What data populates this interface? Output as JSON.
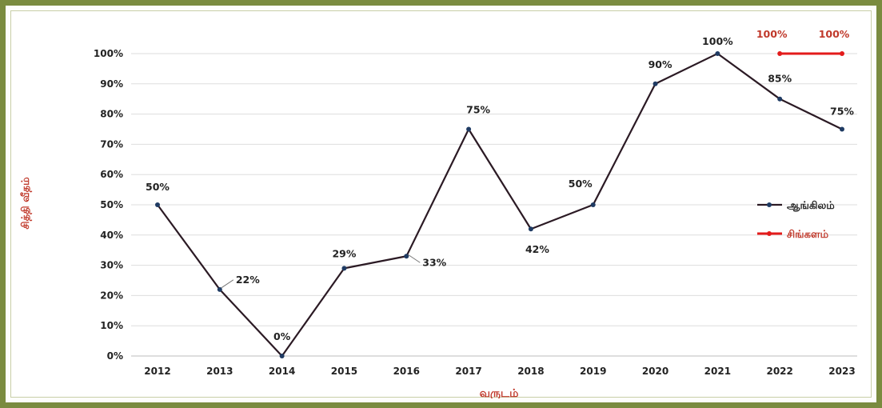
{
  "chart_data": {
    "type": "line",
    "x": [
      "2012",
      "2013",
      "2014",
      "2015",
      "2016",
      "2017",
      "2018",
      "2019",
      "2020",
      "2021",
      "2022",
      "2023"
    ],
    "series": [
      {
        "name": "ஆங்கிலம்",
        "color": "#2b1a24",
        "values": [
          50,
          22,
          0,
          29,
          33,
          75,
          42,
          50,
          90,
          100,
          85,
          75
        ],
        "labels": [
          "50%",
          "22%",
          "0%",
          "29%",
          "33%",
          "75%",
          "42%",
          "50%",
          "90%",
          "100%",
          "85%",
          "75%"
        ]
      },
      {
        "name": "சிங்களம்",
        "color": "#e31b1b",
        "values": [
          null,
          null,
          null,
          null,
          null,
          null,
          null,
          null,
          null,
          null,
          100,
          100
        ],
        "labels": [
          "",
          "",
          "",
          "",
          "",
          "",
          "",
          "",
          "",
          "",
          "100%",
          "100%"
        ]
      }
    ],
    "ylim": [
      0,
      100
    ],
    "yticks": [
      "0%",
      "10%",
      "20%",
      "30%",
      "40%",
      "50%",
      "60%",
      "70%",
      "80%",
      "90%",
      "100%"
    ],
    "xlabel": "வருடம்",
    "ylabel": "சித்தி வீதம்",
    "grid": true,
    "legend": "right"
  }
}
